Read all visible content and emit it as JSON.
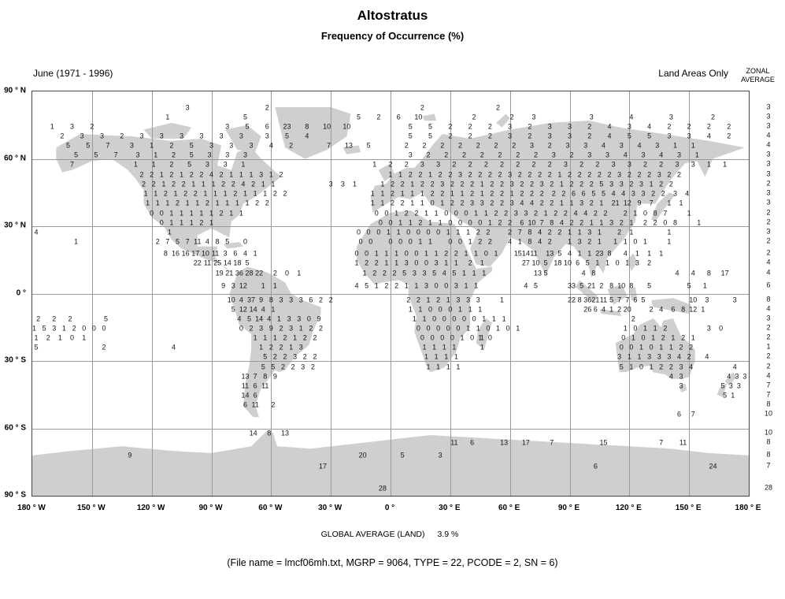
{
  "page": {
    "title": "Altostratus",
    "subtitle": "Frequency of Occurrence (%)",
    "period_label": "June (1971 - 1996)",
    "coverage_label": "Land Areas Only",
    "zonal_header_line1": "ZONAL",
    "zonal_header_line2": "AVERAGE",
    "global_average_label": "GLOBAL AVERAGE (LAND)",
    "global_average_value": "3.9 %",
    "caption": "(File name = lmcf06mh.txt, MGRP = 9064, TYPE = 22, PCODE = 2, SN = 6)"
  },
  "chart_data": {
    "type": "heatmap",
    "title": "Altostratus",
    "subtitle": "Frequency of Occurrence (%)",
    "units": "%",
    "projection": "equirectangular",
    "lon_range": [
      -180,
      180
    ],
    "lat_range": [
      -90,
      90
    ],
    "grid_step_deg": 30,
    "global_average_land": 3.9,
    "lat_ticks": [
      "90 ° N",
      "60 ° N",
      "30 ° N",
      "0 °",
      "30 ° S",
      "60 ° S",
      "90 ° S"
    ],
    "lon_ticks": [
      "180 ° W",
      "150 ° W",
      "120 ° W",
      "90 ° W",
      "60 ° W",
      "30 ° W",
      "0 °",
      "30 ° E",
      "60 ° E",
      "90 ° E",
      "120 ° E",
      "150 ° E",
      "180 ° E"
    ],
    "rows": [
      {
        "lat": 82.6,
        "zonal": "3",
        "runs": [
          [
            -102,
            10,
            "3"
          ],
          [
            -62,
            10,
            "2"
          ],
          [
            16,
            10,
            "2"
          ],
          [
            54,
            10,
            "2"
          ]
        ]
      },
      {
        "lat": 78.4,
        "zonal": "3",
        "runs": [
          [
            -112,
            10,
            "1"
          ],
          [
            -73,
            10,
            "5"
          ],
          [
            -16,
            10,
            "5 2 6 10"
          ],
          [
            42,
            10,
            "2"
          ],
          [
            61,
            11,
            "2 3"
          ],
          [
            101,
            20,
            "3 4 3"
          ],
          [
            162,
            10,
            "2"
          ]
        ]
      },
      {
        "lat": 74.2,
        "zonal": "3",
        "runs": [
          [
            -170,
            10,
            "1 3 2"
          ],
          [
            -82,
            10,
            "3 5 6 23 8 10 10"
          ],
          [
            10,
            10,
            "5 5 2 2 2 3 2 3 3 2 4 3 4 2 2 2 2"
          ]
        ]
      },
      {
        "lat": 70.0,
        "zonal": "4",
        "runs": [
          [
            -165,
            10,
            "2 3 3 2 3 3 3 3 3 3"
          ],
          [
            -62,
            10,
            "3 5 4"
          ],
          [
            10,
            10,
            "5 5 2 2 2 3 2 3 3 2 4 5 5 3 3 4 2"
          ]
        ]
      },
      {
        "lat": 65.8,
        "zonal": "4",
        "runs": [
          [
            -162,
            10,
            "5 5 7"
          ],
          [
            -130,
            10,
            "3 1 2 5 3 3 3"
          ],
          [
            -60,
            10,
            "4 2"
          ],
          [
            -31,
            10,
            "7 13 5"
          ],
          [
            8,
            9,
            "2 2 2 2 2 2 2 3 2 3 3 4 3 4 3 1 1"
          ]
        ]
      },
      {
        "lat": 61.6,
        "zonal": "3",
        "runs": [
          [
            -158,
            10,
            "5 5 7"
          ],
          [
            -127,
            9,
            "3 1 2 5 3 3 3"
          ],
          [
            10,
            9,
            "3 2 2 2 2 2 2 2 3 2 3 3 4 3 4 3 1"
          ]
        ]
      },
      {
        "lat": 57.4,
        "zonal": "3",
        "runs": [
          [
            -160,
            10,
            "7"
          ],
          [
            -128,
            9,
            "1 1 2 5 3 3 1"
          ],
          [
            -8,
            8,
            "1 2 2 3 3 2 2 2 2 2 2 2 3 2 2 3 3 2 2 3 3 1 1"
          ]
        ]
      },
      {
        "lat": 52.8,
        "zonal": "3",
        "runs": [
          [
            -125,
            5,
            "2 2 1 2 1 2 2 4 2 1 1 1 3 1 2"
          ],
          [
            0,
            5,
            "1 1 2 2 1 2 2 3 2 2 2 2 3 2 2 2 2 1 2 2 2 2 2 3 2 2 2 3 2 2"
          ]
        ]
      },
      {
        "lat": 48.6,
        "zonal": "2",
        "runs": [
          [
            -124,
            5,
            "2 2 1 2 2 1 1 1 2 2 4 2 1 1"
          ],
          [
            -30,
            6,
            "3 3 1"
          ],
          [
            -4,
            5,
            "1 2 2 1 2 2 3 2 2 2 1 2 2 3 2 2 3 2 1 2 2 2 5 3 3 2 3 1 2 2"
          ]
        ]
      },
      {
        "lat": 44.4,
        "zonal": "3",
        "runs": [
          [
            -123,
            5,
            "1 1 2 1 2 2 1 1 1 2 1 1 1 2 2"
          ],
          [
            -9,
            5,
            "1 1 2 1 1 1 2 2 1 1 2 1 2 2 1 2 2 2"
          ],
          [
            82,
            5,
            "2 2 6 6 5 5 4 4 3 3 2 2"
          ],
          [
            143,
            6,
            "3 4"
          ]
        ]
      },
      {
        "lat": 40.2,
        "zonal": "3",
        "runs": [
          [
            -122,
            5,
            "1 1 1 2 1 1 2 1 1 1 1 2 2"
          ],
          [
            -9,
            5,
            "1 1 2 2 1 1 0 1 2 2 3 3 2 2 3 4 4 2 2 1 1 3 2 1"
          ],
          [
            113,
            6,
            "21 12 9 7"
          ],
          [
            140,
            6,
            "1 1"
          ]
        ]
      },
      {
        "lat": 35.6,
        "zonal": "2",
        "runs": [
          [
            -120,
            5,
            "0 0 1 1 1 1 1 2 1 1"
          ],
          [
            -7,
            5,
            "0 0 1 2 2 1 1 0 0 0 1 1 2 2 3 3 2 1 2 2 4 4 2 2"
          ],
          [
            118,
            5,
            "2 1 0 8 7"
          ],
          [
            150,
            8,
            "1"
          ]
        ]
      },
      {
        "lat": 31.4,
        "zonal": "2",
        "runs": [
          [
            -115,
            5,
            "0 1 1 1 2 1"
          ],
          [
            -5,
            5,
            "0 0 1 1 2 1 1 0 0 0 0 1 2 2"
          ],
          [
            66,
            5,
            "6 10 7 8 4 2 2 1 1 3 2 1"
          ],
          [
            128,
            5,
            "2 2 0 8"
          ],
          [
            155,
            8,
            "1"
          ]
        ]
      },
      {
        "lat": 27.2,
        "zonal": "3",
        "runs": [
          [
            -178,
            8,
            "4"
          ],
          [
            -111,
            7,
            "1"
          ],
          [
            -16,
            5,
            "0 0 0 1 1 0 0 0 0 1 1 1 2 2"
          ],
          [
            60,
            5,
            "2 7 8 4 2 2 1 1 3 1"
          ],
          [
            115,
            6,
            "2 1"
          ],
          [
            140,
            8,
            "1"
          ]
        ]
      },
      {
        "lat": 23.0,
        "zonal": "2",
        "runs": [
          [
            -158,
            8,
            "1"
          ],
          [
            -117,
            5,
            "2 7 5 7 11 4 8 5"
          ],
          [
            -73,
            6,
            "0"
          ],
          [
            -15,
            5,
            "0 0"
          ],
          [
            0,
            5,
            "0 0 0 1 1"
          ],
          [
            30,
            5,
            "0 0 1 2 2"
          ],
          [
            60,
            5,
            "4 1 8 4 2"
          ],
          [
            90,
            5,
            "1 3 2 1"
          ],
          [
            113,
            5,
            "1 1 0 1"
          ],
          [
            140,
            8,
            "1"
          ]
        ]
      },
      {
        "lat": 17.7,
        "zonal": "2",
        "runs": [
          [
            -113,
            5,
            "8 16 16 17 10 11 3 6 4 1"
          ],
          [
            -17,
            5,
            "0 0 1 1 1 0 0 1 1 2 2 1 1 0 1"
          ],
          [
            64,
            4,
            "15 14 11"
          ],
          [
            80,
            5,
            "13 5 4 1 1 23 8"
          ],
          [
            118,
            6,
            "4 1 1 1"
          ]
        ]
      },
      {
        "lat": 13.5,
        "zonal": "4",
        "runs": [
          [
            -97,
            5,
            "22 11 25 14 18 5"
          ],
          [
            -17,
            5,
            "1 2 2 1 1 3 0 0 3 1 1"
          ],
          [
            40,
            6,
            "2 1"
          ],
          [
            68,
            5,
            "27 10 5"
          ],
          [
            84,
            5,
            "18 10 6 5"
          ],
          [
            104,
            5,
            "1 1 0 1"
          ],
          [
            124,
            6,
            "3 2"
          ]
        ]
      },
      {
        "lat": 8.9,
        "zonal": "4",
        "runs": [
          [
            -86,
            5,
            "19 21 36 28 22"
          ],
          [
            -58,
            6,
            "2 0 1"
          ],
          [
            -13,
            5,
            "1 2 2 2 5 3 3 5 4 5 1 1 1"
          ],
          [
            74,
            4,
            "13 5"
          ],
          [
            97,
            5,
            "4 8"
          ],
          [
            144,
            8,
            "4 4 8 17"
          ]
        ]
      },
      {
        "lat": 3.5,
        "zonal": "6",
        "runs": [
          [
            -84,
            5,
            "9 3 12"
          ],
          [
            -64,
            6,
            "1 1"
          ],
          [
            -17,
            5,
            "4 5 1 2 2 1 1 3 0 0 3 1 1"
          ],
          [
            68,
            5,
            "4 5"
          ],
          [
            91,
            5,
            "33 5 21 2 8 10 8"
          ],
          [
            130,
            6,
            "5"
          ],
          [
            150,
            8,
            "5 1"
          ]
        ]
      },
      {
        "lat": -3.0,
        "zonal": "8",
        "runs": [
          [
            -80,
            5,
            "10 4 37 9 8"
          ],
          [
            -55,
            5,
            "3 3 3 6 2 2"
          ],
          [
            9,
            5,
            "2 2 1 2 1 3 3 3"
          ],
          [
            56,
            8,
            "1"
          ],
          [
            91,
            4,
            "22 8 36 21 11 5 7 7 6 5"
          ],
          [
            152,
            7,
            "10 3"
          ],
          [
            173,
            6,
            "3"
          ]
        ]
      },
      {
        "lat": -7.2,
        "zonal": "4",
        "runs": [
          [
            -79,
            5,
            "5 12 14 4 1"
          ],
          [
            10,
            5,
            "1 1 0 0 0 1 1 1"
          ],
          [
            99,
            4,
            "26 6 4 1 2 20"
          ],
          [
            131,
            5,
            "2 4"
          ],
          [
            142,
            5,
            "6 8 12 1"
          ]
        ]
      },
      {
        "lat": -11.4,
        "zonal": "3",
        "runs": [
          [
            -177,
            8,
            "2 2 2"
          ],
          [
            -143,
            8,
            "5"
          ],
          [
            -76,
            5,
            "4 5 14 4 1 3 3 0 9"
          ],
          [
            12,
            5,
            "1 1 0 0 0 0 0 1 1 1"
          ],
          [
            122,
            8,
            "2"
          ]
        ]
      },
      {
        "lat": -15.6,
        "zonal": "2",
        "runs": [
          [
            -179,
            5,
            "1 5 3 1 2 0 0 0"
          ],
          [
            -75,
            5,
            "0 2 3 9 2 3 1 2 2"
          ],
          [
            14,
            5,
            "0 0 0 0 0 1 1 0 1 0 1"
          ],
          [
            118,
            5,
            "1 0 1 1 2"
          ],
          [
            160,
            6,
            "3 0"
          ]
        ]
      },
      {
        "lat": -19.8,
        "zonal": "2",
        "runs": [
          [
            -178,
            6,
            "1 2 1 0 1"
          ],
          [
            -68,
            5,
            "1 1 1 2 1 2 2"
          ],
          [
            16,
            5,
            "0 0 0 0 1 0 1"
          ],
          [
            45,
            5,
            "1 0"
          ],
          [
            117,
            5,
            "0 1 0 1 2 1 2 1"
          ]
        ]
      },
      {
        "lat": -24.0,
        "zonal": "1",
        "runs": [
          [
            -178,
            5,
            "5"
          ],
          [
            -144,
            5,
            "2"
          ],
          [
            -109,
            5,
            "4"
          ],
          [
            -65,
            5,
            "1 2 2 1 3"
          ],
          [
            17,
            5,
            "1 1 1 1"
          ],
          [
            46,
            6,
            "1"
          ],
          [
            116,
            5,
            "0 0 1 0 1 1 2 2"
          ]
        ]
      },
      {
        "lat": -28.3,
        "zonal": "2",
        "runs": [
          [
            -63,
            5,
            "5 2 2 3 2 2"
          ],
          [
            18,
            5,
            "1 1 1 1"
          ],
          [
            115,
            5,
            "3 1 1 3 3 3 4 2"
          ],
          [
            159,
            8,
            "4"
          ]
        ]
      },
      {
        "lat": -32.8,
        "zonal": "2",
        "runs": [
          [
            -64,
            5,
            "5 5 2 2 3 2"
          ],
          [
            19,
            5,
            "1 1 1 1"
          ],
          [
            116,
            5,
            "5 1 0 1 2 2 3 4"
          ],
          [
            173,
            5,
            "4"
          ]
        ]
      },
      {
        "lat": -37.0,
        "zonal": "4",
        "runs": [
          [
            -73,
            5,
            "13 7 8 9"
          ],
          [
            141,
            5,
            "4 3"
          ],
          [
            170,
            4,
            "4 3 3"
          ]
        ]
      },
      {
        "lat": -41.2,
        "zonal": "7",
        "runs": [
          [
            -73,
            5,
            "11 6 11"
          ],
          [
            146,
            6,
            "3"
          ],
          [
            167,
            4,
            "5 3 3"
          ]
        ]
      },
      {
        "lat": -45.5,
        "zonal": "7",
        "runs": [
          [
            -73,
            5,
            "14 6"
          ],
          [
            168,
            4,
            "5 1"
          ]
        ]
      },
      {
        "lat": -49.7,
        "zonal": "8",
        "runs": [
          [
            -73,
            5,
            "6 11"
          ],
          [
            -59,
            5,
            "2"
          ]
        ]
      },
      {
        "lat": -53.9,
        "zonal": "10",
        "runs": [
          [
            145,
            7,
            "6 7"
          ]
        ]
      },
      {
        "lat": -62.3,
        "zonal": "10",
        "runs": [
          [
            -69,
            8,
            "14 8 13"
          ]
        ]
      },
      {
        "lat": -66.5,
        "zonal": "8",
        "runs": [
          [
            32,
            9,
            "11 6"
          ],
          [
            57,
            11,
            "13 17"
          ],
          [
            81,
            5,
            "7"
          ],
          [
            107,
            5,
            "15"
          ],
          [
            136,
            11,
            "7 11"
          ]
        ]
      },
      {
        "lat": -72.1,
        "zonal": "8",
        "runs": [
          [
            -131,
            6,
            "9"
          ],
          [
            -14,
            10,
            "20"
          ],
          [
            6,
            10,
            "5"
          ],
          [
            25,
            10,
            "3"
          ]
        ]
      },
      {
        "lat": -77.0,
        "zonal": "7",
        "runs": [
          [
            -34,
            5,
            "17"
          ],
          [
            103,
            5,
            "6"
          ],
          [
            162,
            5,
            "24"
          ]
        ]
      },
      {
        "lat": -86.8,
        "zonal": "28",
        "runs": [
          [
            -4,
            5,
            "28"
          ]
        ]
      }
    ]
  }
}
